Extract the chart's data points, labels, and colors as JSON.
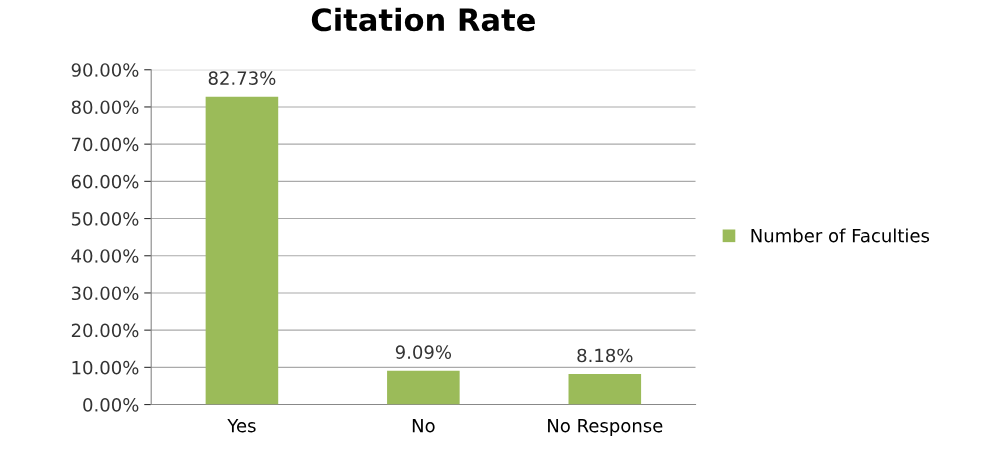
{
  "chart_data": {
    "type": "bar",
    "title": "Citation Rate",
    "categories": [
      "Yes",
      "No",
      "No Response"
    ],
    "series": [
      {
        "name": "Number of Faculties",
        "color": "#9bbb59",
        "values": [
          82.73,
          9.09,
          8.18
        ],
        "value_labels": [
          "82.73%",
          "9.09%",
          "8.18%"
        ]
      }
    ],
    "ylim": [
      0,
      90
    ],
    "yticks": [
      {
        "value": 0,
        "label": "0.00%"
      },
      {
        "value": 10,
        "label": "10.00%"
      },
      {
        "value": 20,
        "label": "20.00%"
      },
      {
        "value": 30,
        "label": "30.00%"
      },
      {
        "value": 40,
        "label": "40.00%"
      },
      {
        "value": 50,
        "label": "50.00%"
      },
      {
        "value": 60,
        "label": "60.00%"
      },
      {
        "value": 70,
        "label": "70.00%"
      },
      {
        "value": 80,
        "label": "80.00%"
      },
      {
        "value": 90,
        "label": "90.00%"
      }
    ],
    "grid": "y",
    "legend": "right"
  }
}
